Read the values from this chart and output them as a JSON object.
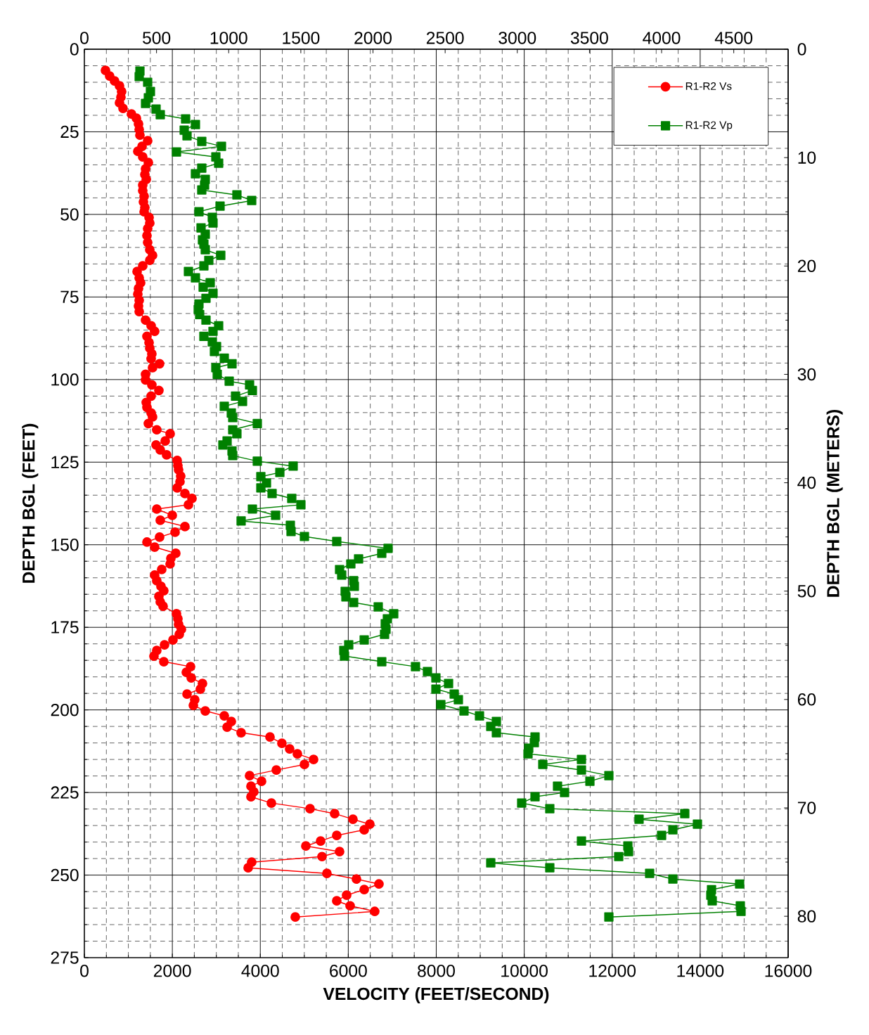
{
  "chart_data": {
    "type": "line",
    "xlabel": "VELOCITY (FEET/SECOND)",
    "ylabel": "DEPTH BGL (FEET)",
    "y2label": "DEPTH BGL (METERS)",
    "xlim": [
      0,
      16000
    ],
    "xticks": [
      0,
      2000,
      4000,
      6000,
      8000,
      10000,
      12000,
      14000,
      16000
    ],
    "ylim": [
      275,
      0
    ],
    "yticks": [
      0,
      25,
      50,
      75,
      100,
      125,
      150,
      175,
      200,
      225,
      250,
      275
    ],
    "x2lim": [
      0,
      4876.8
    ],
    "x2ticks": [
      0,
      500,
      1000,
      1500,
      2000,
      2500,
      3000,
      3500,
      4000,
      4500
    ],
    "y2lim": [
      83.82,
      0
    ],
    "y2ticks": [
      0,
      10,
      20,
      30,
      40,
      50,
      60,
      70,
      80
    ],
    "grid": true,
    "legend": "top right",
    "series": [
      {
        "name": "R1-R2 Vs",
        "color": "#ff0000",
        "marker": "circle",
        "x": [
          480,
          575,
          687,
          799,
          847,
          831,
          799,
          879,
          1071,
          1183,
          1231,
          1247,
          1263,
          1439,
          1311,
          1215,
          1327,
          1455,
          1391,
          1375,
          1407,
          1327,
          1327,
          1359,
          1343,
          1375,
          1359,
          1471,
          1487,
          1439,
          1423,
          1439,
          1487,
          1550,
          1487,
          1327,
          1199,
          1247,
          1279,
          1231,
          1215,
          1247,
          1231,
          1247,
          1391,
          1518,
          1598,
          1423,
          1471,
          1487,
          1534,
          1518,
          1710,
          1550,
          1391,
          1391,
          1534,
          1694,
          1518,
          1407,
          1423,
          1518,
          1550,
          1455,
          1646,
          1950,
          1838,
          1630,
          1726,
          1870,
          2110,
          2126,
          2142,
          2190,
          2174,
          2110,
          2286,
          2446,
          2366,
          1646,
          1998,
          1726,
          2286,
          2062,
          1710,
          1423,
          1598,
          2078,
          1966,
          1950,
          1758,
          1598,
          1646,
          1742,
          1806,
          1694,
          1726,
          1790,
          2094,
          2126,
          2142,
          2206,
          2158,
          2014,
          1822,
          1646,
          1582,
          1806,
          2414,
          2318,
          2430,
          2685,
          2637,
          2334,
          2509,
          2478,
          2749,
          3181,
          3341,
          3245,
          3564,
          4220,
          4491,
          4667,
          4843,
          5211,
          5003,
          4364,
          3756,
          4028,
          3788,
          3852,
          3788,
          4252,
          5131,
          5690,
          6106,
          6490,
          6362,
          5738,
          5371,
          5035,
          5802,
          5403,
          3804,
          3724,
          5514,
          6186,
          6697,
          6362,
          5962,
          5738,
          6042,
          6601,
          4795
        ],
        "values": [
          6.4,
          8.1,
          9.6,
          11.1,
          12.8,
          14.5,
          16.2,
          17.9,
          19.6,
          20.9,
          22.6,
          24.3,
          26.0,
          27.7,
          29.4,
          30.9,
          32.6,
          34.3,
          36.2,
          37.9,
          39.4,
          41.1,
          42.8,
          44.5,
          46.2,
          47.9,
          49.2,
          50.9,
          52.6,
          54.3,
          56.4,
          58.5,
          60.7,
          62.4,
          63.9,
          65.6,
          67.3,
          69.2,
          70.7,
          72.4,
          74.1,
          76.0,
          77.7,
          79.4,
          82.0,
          83.7,
          85.4,
          86.9,
          88.8,
          90.5,
          92.2,
          93.7,
          95.2,
          96.4,
          98.4,
          100.1,
          101.6,
          103.3,
          105.0,
          106.9,
          108.4,
          110.1,
          111.3,
          113.3,
          115.2,
          116.4,
          118.6,
          119.8,
          121.3,
          122.8,
          124.5,
          126.0,
          127.3,
          129.2,
          130.9,
          132.8,
          134.5,
          136.0,
          137.9,
          139.2,
          141.1,
          142.6,
          144.5,
          146.2,
          147.7,
          149.2,
          150.7,
          152.6,
          154.1,
          155.8,
          157.5,
          159.2,
          160.9,
          162.6,
          163.9,
          165.6,
          167.3,
          168.6,
          170.9,
          172.4,
          174.1,
          175.6,
          177.1,
          178.8,
          180.3,
          182.0,
          183.7,
          185.4,
          186.9,
          188.6,
          190.3,
          192.0,
          193.7,
          195.2,
          196.9,
          198.6,
          200.3,
          201.8,
          203.5,
          205.2,
          206.9,
          208.2,
          210.1,
          211.8,
          213.3,
          215.0,
          216.5,
          218.2,
          219.9,
          221.6,
          223.1,
          224.8,
          226.3,
          228.2,
          229.9,
          231.4,
          233.1,
          234.6,
          236.3,
          238.0,
          239.7,
          241.2,
          242.9,
          244.4,
          246.1,
          247.8,
          249.5,
          251.2,
          252.7,
          254.4,
          256.1,
          257.8,
          259.3,
          261.0,
          262.7
        ]
      },
      {
        "name": "R1-R2 Vp",
        "color": "#008000",
        "marker": "square",
        "x": [
          1263,
          1247,
          1439,
          1502,
          1455,
          1391,
          1630,
          1726,
          2302,
          2525,
          2270,
          2334,
          2669,
          3117,
          2094,
          2989,
          3053,
          2669,
          2525,
          2749,
          2733,
          2669,
          3468,
          3804,
          3085,
          2605,
          2909,
          2925,
          2653,
          2749,
          2685,
          2717,
          2749,
          3101,
          2829,
          2717,
          2366,
          2525,
          2861,
          2701,
          2925,
          2765,
          2605,
          2589,
          2621,
          2765,
          3053,
          2925,
          2717,
          2909,
          3005,
          2957,
          3181,
          3357,
          2989,
          3021,
          3293,
          3756,
          3820,
          3437,
          3596,
          3181,
          3341,
          3373,
          3932,
          3373,
          3468,
          3245,
          3149,
          3357,
          3373,
          3932,
          4747,
          4444,
          4012,
          4140,
          4012,
          4268,
          4715,
          4923,
          3820,
          4348,
          3564,
          4683,
          4699,
          5003,
          5738,
          6905,
          6761,
          6234,
          6058,
          5802,
          5850,
          6122,
          6138,
          5930,
          5946,
          6122,
          6681,
          7033,
          6889,
          6841,
          6857,
          6825,
          6362,
          6010,
          5898,
          5914,
          6761,
          7528,
          7800,
          7992,
          8280,
          7992,
          8408,
          8503,
          8104,
          8631,
          8983,
          9367,
          9239,
          9367,
          10246,
          10230,
          10102,
          10086,
          11301,
          10422,
          11301,
          11924,
          11493,
          10757,
          10917,
          10246,
          9942,
          10581,
          13650,
          12611,
          13938,
          13379,
          13123,
          11301,
          12356,
          12372,
          12148,
          9239,
          10581,
          12851,
          13379,
          14897,
          14258,
          14242,
          14274,
          14913,
          14929,
          11924
        ],
        "values": [
          6.6,
          8.3,
          10.0,
          12.8,
          14.7,
          16.4,
          18.1,
          19.8,
          21.1,
          22.8,
          24.5,
          26.2,
          27.9,
          29.4,
          31.1,
          32.6,
          34.5,
          36.0,
          37.7,
          39.4,
          41.1,
          42.6,
          44.1,
          45.8,
          47.5,
          49.2,
          50.9,
          52.6,
          54.1,
          56.0,
          57.7,
          59.0,
          60.7,
          62.4,
          63.9,
          65.6,
          67.3,
          69.2,
          70.7,
          72.0,
          73.9,
          75.4,
          77.1,
          78.8,
          80.3,
          82.0,
          83.7,
          85.4,
          86.9,
          88.6,
          90.0,
          91.5,
          93.5,
          95.2,
          96.4,
          98.4,
          100.5,
          101.6,
          103.3,
          105.0,
          106.6,
          108.1,
          110.1,
          111.5,
          113.3,
          115.2,
          116.4,
          118.6,
          119.8,
          121.6,
          123.0,
          124.7,
          126.2,
          128.1,
          129.4,
          131.3,
          132.8,
          134.5,
          136.0,
          137.9,
          139.2,
          141.1,
          142.8,
          144.1,
          146.0,
          147.5,
          149.0,
          151.1,
          152.6,
          154.3,
          155.8,
          157.5,
          159.2,
          160.9,
          162.6,
          164.1,
          165.8,
          167.5,
          168.8,
          170.9,
          172.4,
          173.9,
          175.6,
          177.1,
          178.8,
          180.3,
          182.0,
          183.7,
          185.4,
          186.9,
          188.4,
          190.3,
          192.0,
          193.7,
          195.2,
          196.9,
          198.4,
          200.3,
          201.8,
          203.5,
          205.0,
          206.9,
          208.2,
          209.9,
          211.6,
          213.3,
          215.0,
          216.5,
          218.2,
          219.9,
          221.6,
          223.1,
          225.0,
          226.3,
          228.2,
          229.9,
          231.4,
          233.1,
          234.6,
          236.3,
          238.0,
          239.7,
          241.2,
          242.9,
          244.4,
          246.3,
          247.8,
          249.5,
          251.2,
          252.7,
          254.4,
          256.1,
          257.8,
          259.3,
          261.0,
          262.7
        ]
      }
    ]
  }
}
